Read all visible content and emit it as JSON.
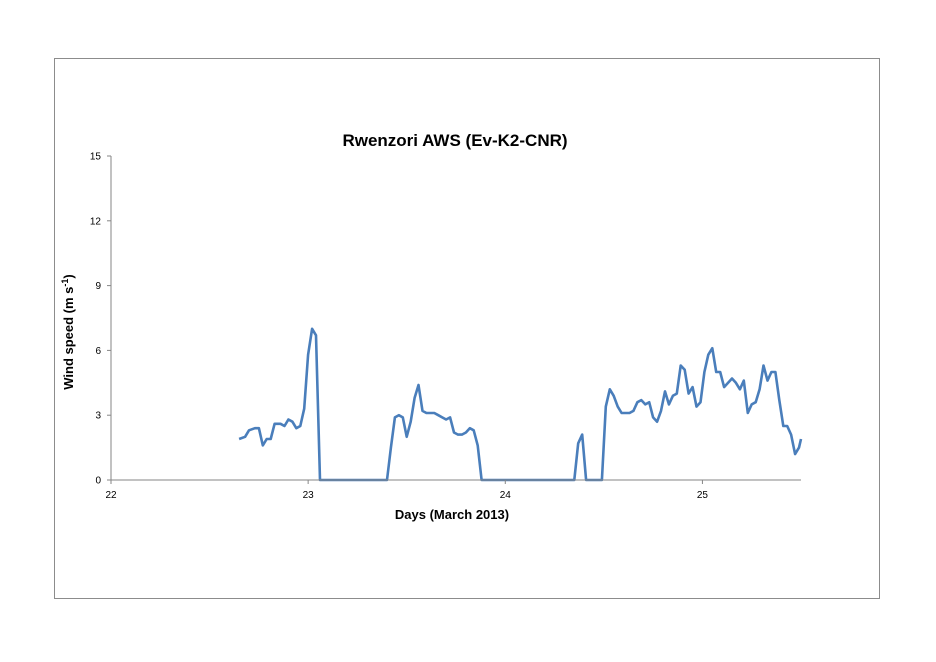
{
  "chart_data": {
    "type": "line",
    "title": "Rwenzori AWS (Ev-K2-CNR)",
    "xlabel": "Days (March 2013)",
    "ylabel": "Wind speed (m s",
    "ylabel_superscript": "-1",
    "ylabel_close": ")",
    "xlim": [
      22,
      25.5
    ],
    "ylim": [
      0,
      15
    ],
    "x_ticks": [
      22,
      23,
      24,
      25
    ],
    "y_ticks": [
      0,
      3,
      6,
      9,
      12,
      15
    ],
    "grid": false,
    "legend": "none",
    "series": [
      {
        "color": "#4a7ebb",
        "x": [
          22.65,
          22.68,
          22.7,
          22.73,
          22.75,
          22.77,
          22.79,
          22.81,
          22.83,
          22.86,
          22.88,
          22.9,
          22.92,
          22.94,
          22.96,
          22.98,
          23.0,
          23.02,
          23.04,
          23.06,
          23.1,
          23.2,
          23.3,
          23.4,
          23.42,
          23.44,
          23.46,
          23.48,
          23.5,
          23.52,
          23.54,
          23.56,
          23.58,
          23.6,
          23.62,
          23.64,
          23.66,
          23.68,
          23.7,
          23.72,
          23.74,
          23.76,
          23.78,
          23.8,
          23.82,
          23.84,
          23.86,
          23.88,
          23.9,
          24.0,
          24.2,
          24.35,
          24.37,
          24.39,
          24.41,
          24.43,
          24.45,
          24.47,
          24.49,
          24.51,
          24.53,
          24.55,
          24.57,
          24.59,
          24.61,
          24.63,
          24.65,
          24.67,
          24.69,
          24.71,
          24.73,
          24.75,
          24.77,
          24.79,
          24.81,
          24.83,
          24.85,
          24.87,
          24.89,
          24.91,
          24.93,
          24.95,
          24.97,
          24.99,
          25.01,
          25.03,
          25.05,
          25.07,
          25.09,
          25.11,
          25.13,
          25.15,
          25.17,
          25.19,
          25.21,
          25.23,
          25.25,
          25.27,
          25.29,
          25.31,
          25.33,
          25.35,
          25.37,
          25.39,
          25.41,
          25.43,
          25.45,
          25.47,
          25.49,
          25.5
        ],
        "y": [
          1.9,
          2.0,
          2.3,
          2.4,
          2.4,
          1.6,
          1.9,
          1.9,
          2.6,
          2.6,
          2.5,
          2.8,
          2.7,
          2.4,
          2.5,
          3.3,
          5.8,
          7.0,
          6.7,
          0.0,
          0.0,
          0.0,
          0.0,
          0.0,
          1.5,
          2.9,
          3.0,
          2.9,
          2.0,
          2.7,
          3.8,
          4.4,
          3.2,
          3.1,
          3.1,
          3.1,
          3.0,
          2.9,
          2.8,
          2.9,
          2.2,
          2.1,
          2.1,
          2.2,
          2.4,
          2.3,
          1.6,
          0.0,
          0.0,
          0.0,
          0.0,
          0.0,
          1.7,
          2.1,
          0.0,
          0.0,
          0.0,
          0.0,
          0.0,
          3.4,
          4.2,
          3.9,
          3.4,
          3.1,
          3.1,
          3.1,
          3.2,
          3.6,
          3.7,
          3.5,
          3.6,
          2.9,
          2.7,
          3.2,
          4.1,
          3.5,
          3.9,
          4.0,
          5.3,
          5.1,
          4.0,
          4.3,
          3.4,
          3.6,
          5.0,
          5.8,
          6.1,
          5.0,
          5.0,
          4.3,
          4.5,
          4.7,
          4.5,
          4.2,
          4.6,
          3.1,
          3.5,
          3.6,
          4.2,
          5.3,
          4.6,
          5.0,
          5.0,
          3.7,
          2.5,
          2.5,
          2.1,
          1.2,
          1.5,
          1.9
        ]
      }
    ]
  }
}
